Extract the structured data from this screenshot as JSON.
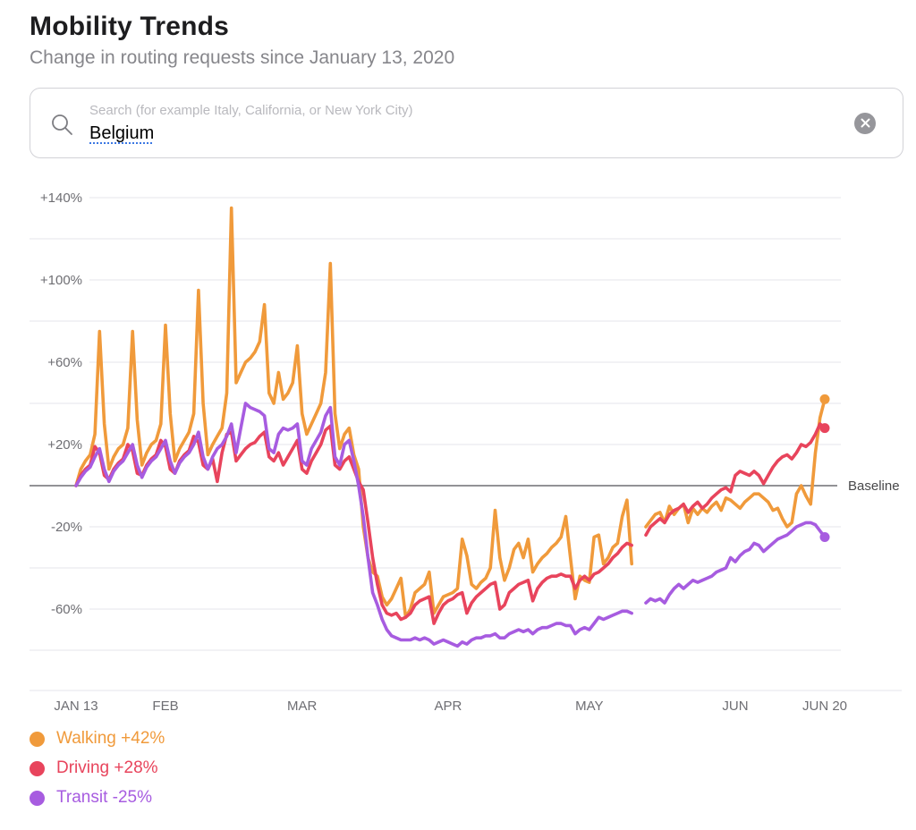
{
  "header": {
    "title": "Mobility Trends",
    "subtitle": "Change in routing requests since January 13, 2020"
  },
  "search": {
    "placeholder": "Search (for example Italy, California, or New York City)",
    "value": "Belgium",
    "search_icon": "magnifier",
    "clear_icon": "x-in-circle",
    "spellcheck_underline_color": "#3b77e3"
  },
  "chart_data": {
    "type": "line",
    "title": "Mobility Trends",
    "x_unit": "days since 2020-01-13 (daily points, Jan 13 = day 0, Jun 20 = day 159; nulls = missing data May 11-12)",
    "x_ticks": [
      {
        "label": "JAN 13",
        "day": 0
      },
      {
        "label": "FEB",
        "day": 19
      },
      {
        "label": "MAR",
        "day": 48
      },
      {
        "label": "APR",
        "day": 79
      },
      {
        "label": "MAY",
        "day": 109
      },
      {
        "label": "JUN",
        "day": 140
      },
      {
        "label": "JUN 20",
        "day": 159
      }
    ],
    "y_ticks": [
      {
        "label": "+140%",
        "value": 140
      },
      {
        "label": "+100%",
        "value": 100
      },
      {
        "label": "+60%",
        "value": 60
      },
      {
        "label": "+20%",
        "value": 20
      },
      {
        "label": "-20%",
        "value": -20
      },
      {
        "label": "-60%",
        "value": -60
      }
    ],
    "gridlines_unlabeled": [
      120,
      80,
      40,
      -40,
      -80
    ],
    "ylim": [
      -100,
      150
    ],
    "grid": true,
    "baseline_label": "Baseline",
    "baseline_value": 0,
    "colors": {
      "grid": "#e6e6eb",
      "baseline": "#6e6e73",
      "axis_text": "#6e6e73",
      "baseline_text": "#48484a"
    },
    "series": [
      {
        "name": "Walking",
        "legend_label": "Walking +42%",
        "final_value": 42,
        "color": "#f09a3b",
        "values": [
          0,
          8,
          12,
          15,
          25,
          75,
          30,
          8,
          14,
          18,
          20,
          28,
          75,
          32,
          10,
          16,
          20,
          22,
          30,
          78,
          35,
          12,
          18,
          22,
          26,
          35,
          95,
          40,
          15,
          20,
          24,
          28,
          45,
          135,
          50,
          55,
          60,
          62,
          65,
          70,
          88,
          45,
          40,
          55,
          42,
          45,
          50,
          68,
          35,
          25,
          30,
          35,
          40,
          55,
          108,
          35,
          18,
          25,
          28,
          15,
          8,
          -20,
          -35,
          -42,
          -44,
          -54,
          -58,
          -55,
          -50,
          -45,
          -64,
          -60,
          -52,
          -50,
          -48,
          -42,
          -62,
          -58,
          -54,
          -53,
          -52,
          -50,
          -26,
          -34,
          -48,
          -50,
          -47,
          -45,
          -40,
          -12,
          -35,
          -46,
          -40,
          -31,
          -28,
          -35,
          -26,
          -42,
          -38,
          -35,
          -33,
          -30,
          -28,
          -25,
          -15,
          -35,
          -55,
          -44,
          -46,
          -47,
          -25,
          -24,
          -38,
          -35,
          -30,
          -28,
          -15,
          -7,
          -38,
          null,
          null,
          -20,
          -17,
          -14,
          -13,
          -18,
          -10,
          -14,
          -11,
          -9,
          -18,
          -11,
          -14,
          -11,
          -13,
          -10,
          -8,
          -12,
          -6,
          -7,
          -9,
          -11,
          -8,
          -6,
          -4,
          -4,
          -6,
          -8,
          -12,
          -11,
          -16,
          -20,
          -18,
          -4,
          0,
          -5,
          -9,
          16,
          33,
          42
        ]
      },
      {
        "name": "Driving",
        "legend_label": "Driving +28%",
        "final_value": 28,
        "color": "#e8445c",
        "values": [
          0,
          5,
          8,
          10,
          19,
          16,
          5,
          3,
          8,
          11,
          13,
          20,
          17,
          6,
          5,
          10,
          13,
          15,
          22,
          19,
          8,
          6,
          12,
          15,
          17,
          24,
          21,
          10,
          8,
          13,
          2,
          16,
          25,
          26,
          12,
          15,
          18,
          20,
          21,
          24,
          26,
          14,
          12,
          16,
          10,
          14,
          18,
          22,
          8,
          6,
          12,
          16,
          20,
          27,
          29,
          10,
          8,
          12,
          14,
          8,
          2,
          -2,
          -18,
          -35,
          -48,
          -58,
          -62,
          -63,
          -62,
          -65,
          -64,
          -62,
          -58,
          -56,
          -55,
          -54,
          -67,
          -62,
          -58,
          -56,
          -55,
          -53,
          -52,
          -62,
          -57,
          -54,
          -52,
          -50,
          -48,
          -47,
          -60,
          -58,
          -52,
          -50,
          -48,
          -47,
          -46,
          -56,
          -50,
          -47,
          -45,
          -44,
          -44,
          -43,
          -44,
          -44,
          -50,
          -46,
          -44,
          -46,
          -43,
          -42,
          -40,
          -38,
          -35,
          -33,
          -30,
          -28,
          -29,
          null,
          null,
          -24,
          -20,
          -18,
          -16,
          -18,
          -14,
          -12,
          -11,
          -9,
          -13,
          -10,
          -8,
          -11,
          -9,
          -6,
          -4,
          -2,
          -1,
          -3,
          5,
          7,
          6,
          5,
          7,
          5,
          1,
          5,
          9,
          12,
          14,
          15,
          13,
          16,
          20,
          19,
          21,
          25,
          30,
          28
        ]
      },
      {
        "name": "Transit",
        "legend_label": "Transit -25%",
        "final_value": -25,
        "color": "#a75ce0",
        "values": [
          0,
          4,
          7,
          9,
          14,
          18,
          8,
          2,
          7,
          10,
          12,
          16,
          20,
          10,
          4,
          9,
          12,
          14,
          18,
          22,
          12,
          6,
          11,
          14,
          16,
          20,
          26,
          14,
          8,
          14,
          18,
          20,
          24,
          30,
          16,
          28,
          40,
          38,
          37,
          36,
          34,
          18,
          16,
          25,
          28,
          27,
          28,
          30,
          12,
          10,
          18,
          22,
          26,
          34,
          38,
          14,
          10,
          20,
          22,
          12,
          0,
          -15,
          -35,
          -52,
          -58,
          -65,
          -70,
          -73,
          -74,
          -75,
          -75,
          -75,
          -74,
          -75,
          -74,
          -75,
          -77,
          -76,
          -75,
          -76,
          -77,
          -78,
          -76,
          -77,
          -75,
          -74,
          -74,
          -73,
          -73,
          -72,
          -74,
          -74,
          -72,
          -71,
          -70,
          -71,
          -70,
          -72,
          -70,
          -69,
          -69,
          -68,
          -67,
          -67,
          -68,
          -68,
          -72,
          -70,
          -69,
          -70,
          -67,
          -64,
          -65,
          -64,
          -63,
          -62,
          -61,
          -61,
          -62,
          null,
          null,
          -57,
          -55,
          -56,
          -55,
          -57,
          -53,
          -50,
          -48,
          -50,
          -48,
          -46,
          -47,
          -46,
          -45,
          -44,
          -42,
          -41,
          -40,
          -35,
          -37,
          -34,
          -32,
          -31,
          -28,
          -29,
          -32,
          -30,
          -28,
          -26,
          -25,
          -24,
          -22,
          -20,
          -19,
          -18,
          -18,
          -19,
          -22,
          -25
        ]
      }
    ]
  }
}
